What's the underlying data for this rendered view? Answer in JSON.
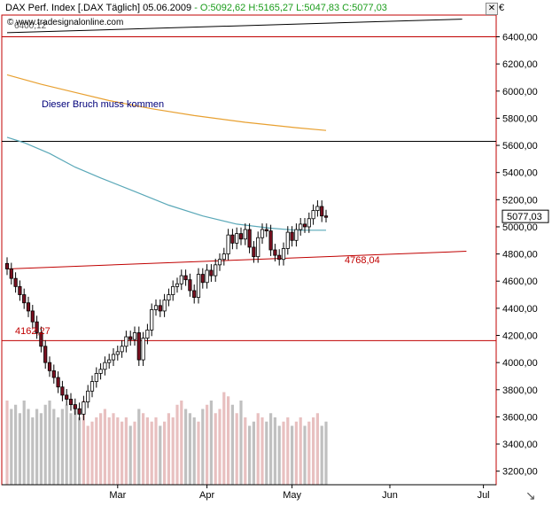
{
  "header": {
    "instrument": "DAX Perf. Index [.DAX  Täglich] 05.06.2009",
    "quote": "- O:5092,62 H:5165,27 L:5047,83 C:5077,03"
  },
  "watermark": "© www.tradesignalonline.com",
  "currency_symbol": "€",
  "close_button_icon": "close-icon",
  "colors": {
    "up": "#ffffff",
    "down": "#7a1020",
    "line_red": "#c00000",
    "sma_teal": "#5aa8b8",
    "sma_orange": "#e8a030",
    "volume_gray": "#c0c0c0",
    "volume_pink": "#e8c0c0"
  },
  "chart_data": {
    "type": "candlestick",
    "ylim": [
      3100,
      6560
    ],
    "yticks": [
      "3200,00",
      "3400,00",
      "3600,00",
      "3800,00",
      "4000,00",
      "4200,00",
      "4400,00",
      "4600,00",
      "4800,00",
      "5000,00",
      "5200,00",
      "5400,00",
      "5600,00",
      "5800,00",
      "6000,00",
      "6200,00",
      "6400,00"
    ],
    "xticks": [
      {
        "label": "Mar",
        "bar": 26
      },
      {
        "label": "Apr",
        "bar": 47
      },
      {
        "label": "May",
        "bar": 67
      },
      {
        "label": "Jun",
        "bar": 90
      },
      {
        "label": "Jul",
        "bar": 112
      }
    ],
    "closes": [
      4690,
      4620,
      4560,
      4500,
      4440,
      4380,
      4300,
      4220,
      4120,
      4000,
      3940,
      3890,
      3820,
      3760,
      3730,
      3690,
      3660,
      3620,
      3710,
      3790,
      3860,
      3920,
      3950,
      4000,
      4020,
      4060,
      4080,
      4120,
      4190,
      4170,
      4220,
      4020,
      4180,
      4240,
      4390,
      4420,
      4380,
      4460,
      4500,
      4560,
      4580,
      4640,
      4610,
      4530,
      4480,
      4650,
      4590,
      4680,
      4640,
      4720,
      4760,
      4800,
      4940,
      4880,
      4950,
      4910,
      4980,
      4850,
      4780,
      4920,
      4980,
      4970,
      4830,
      4790,
      4760,
      4840,
      4960,
      4900,
      4980,
      5020,
      5000,
      5060,
      5120,
      5150,
      5080,
      5077
    ],
    "volumes": [
      1,
      0.9,
      0.95,
      0.85,
      1,
      0.9,
      0.8,
      0.9,
      0.85,
      0.95,
      1,
      0.9,
      0.8,
      0.9,
      0.95,
      0.85,
      0.9,
      0.8,
      1,
      0.7,
      0.75,
      0.8,
      0.85,
      0.9,
      0.8,
      0.85,
      0.8,
      0.75,
      0.8,
      0.7,
      0.75,
      0.9,
      0.85,
      0.8,
      0.75,
      0.8,
      0.7,
      0.75,
      0.85,
      0.8,
      0.95,
      1,
      0.9,
      0.85,
      0.8,
      0.75,
      0.9,
      0.95,
      1,
      0.85,
      0.9,
      1.1,
      1.05,
      0.95,
      0.85,
      1.0,
      0.8,
      0.7,
      0.75,
      0.85,
      0.8,
      0.75,
      0.85,
      0.8,
      0.7,
      0.75,
      0.8,
      0.7,
      0.75,
      0.8,
      0.7,
      0.75,
      0.8,
      0.85,
      0.7,
      0.75
    ],
    "last_price_label": "5077,03",
    "support_label": "4768,04",
    "horizontal_label_1": "4162,27",
    "horizontal_label_2": "6400,12",
    "annotation": "Dieser Bruch muss kommen",
    "sma_teal": [
      [
        0,
        5660
      ],
      [
        4,
        5620
      ],
      [
        10,
        5540
      ],
      [
        16,
        5440
      ],
      [
        22,
        5360
      ],
      [
        30,
        5260
      ],
      [
        38,
        5160
      ],
      [
        46,
        5080
      ],
      [
        54,
        5020
      ],
      [
        62,
        4990
      ],
      [
        68,
        4975
      ],
      [
        75,
        4975
      ]
    ],
    "sma_orange": [
      [
        0,
        6120
      ],
      [
        8,
        6050
      ],
      [
        16,
        5990
      ],
      [
        24,
        5930
      ],
      [
        34,
        5870
      ],
      [
        44,
        5820
      ],
      [
        56,
        5770
      ],
      [
        68,
        5730
      ],
      [
        75,
        5710
      ]
    ],
    "trend_black": [
      [
        0,
        6430
      ],
      [
        107,
        6530
      ]
    ],
    "trend_red": [
      [
        0,
        4690
      ],
      [
        108,
        4820
      ]
    ],
    "hline_black": 5630,
    "hline_red_top": 6400,
    "hline_red_bottom": 4162
  }
}
